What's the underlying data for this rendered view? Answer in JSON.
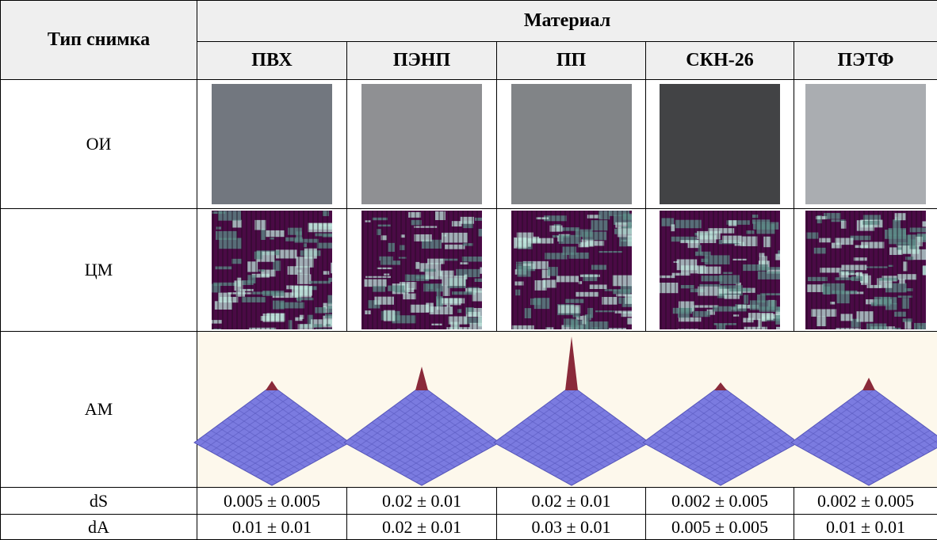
{
  "table": {
    "corner": "Тип снимка",
    "group_header": "Материал",
    "columns": [
      "ПВХ",
      "ПЭНП",
      "ПП",
      "СКН-26",
      "ПЭТФ"
    ],
    "rows": [
      {
        "label": "ОИ"
      },
      {
        "label": "ЦМ"
      },
      {
        "label": "АМ"
      },
      {
        "label": "dS",
        "cells": [
          "0.005 ± 0.005",
          "0.02 ± 0.01",
          "0.02 ± 0.01",
          "0.002 ± 0.005",
          "0.002 ± 0.005"
        ]
      },
      {
        "label": "dA",
        "cells": [
          "0.01 ± 0.01",
          "0.02 ± 0.01",
          "0.03 ± 0.01",
          "0.005 ± 0.005",
          "0.01 ± 0.01"
        ]
      }
    ]
  }
}
